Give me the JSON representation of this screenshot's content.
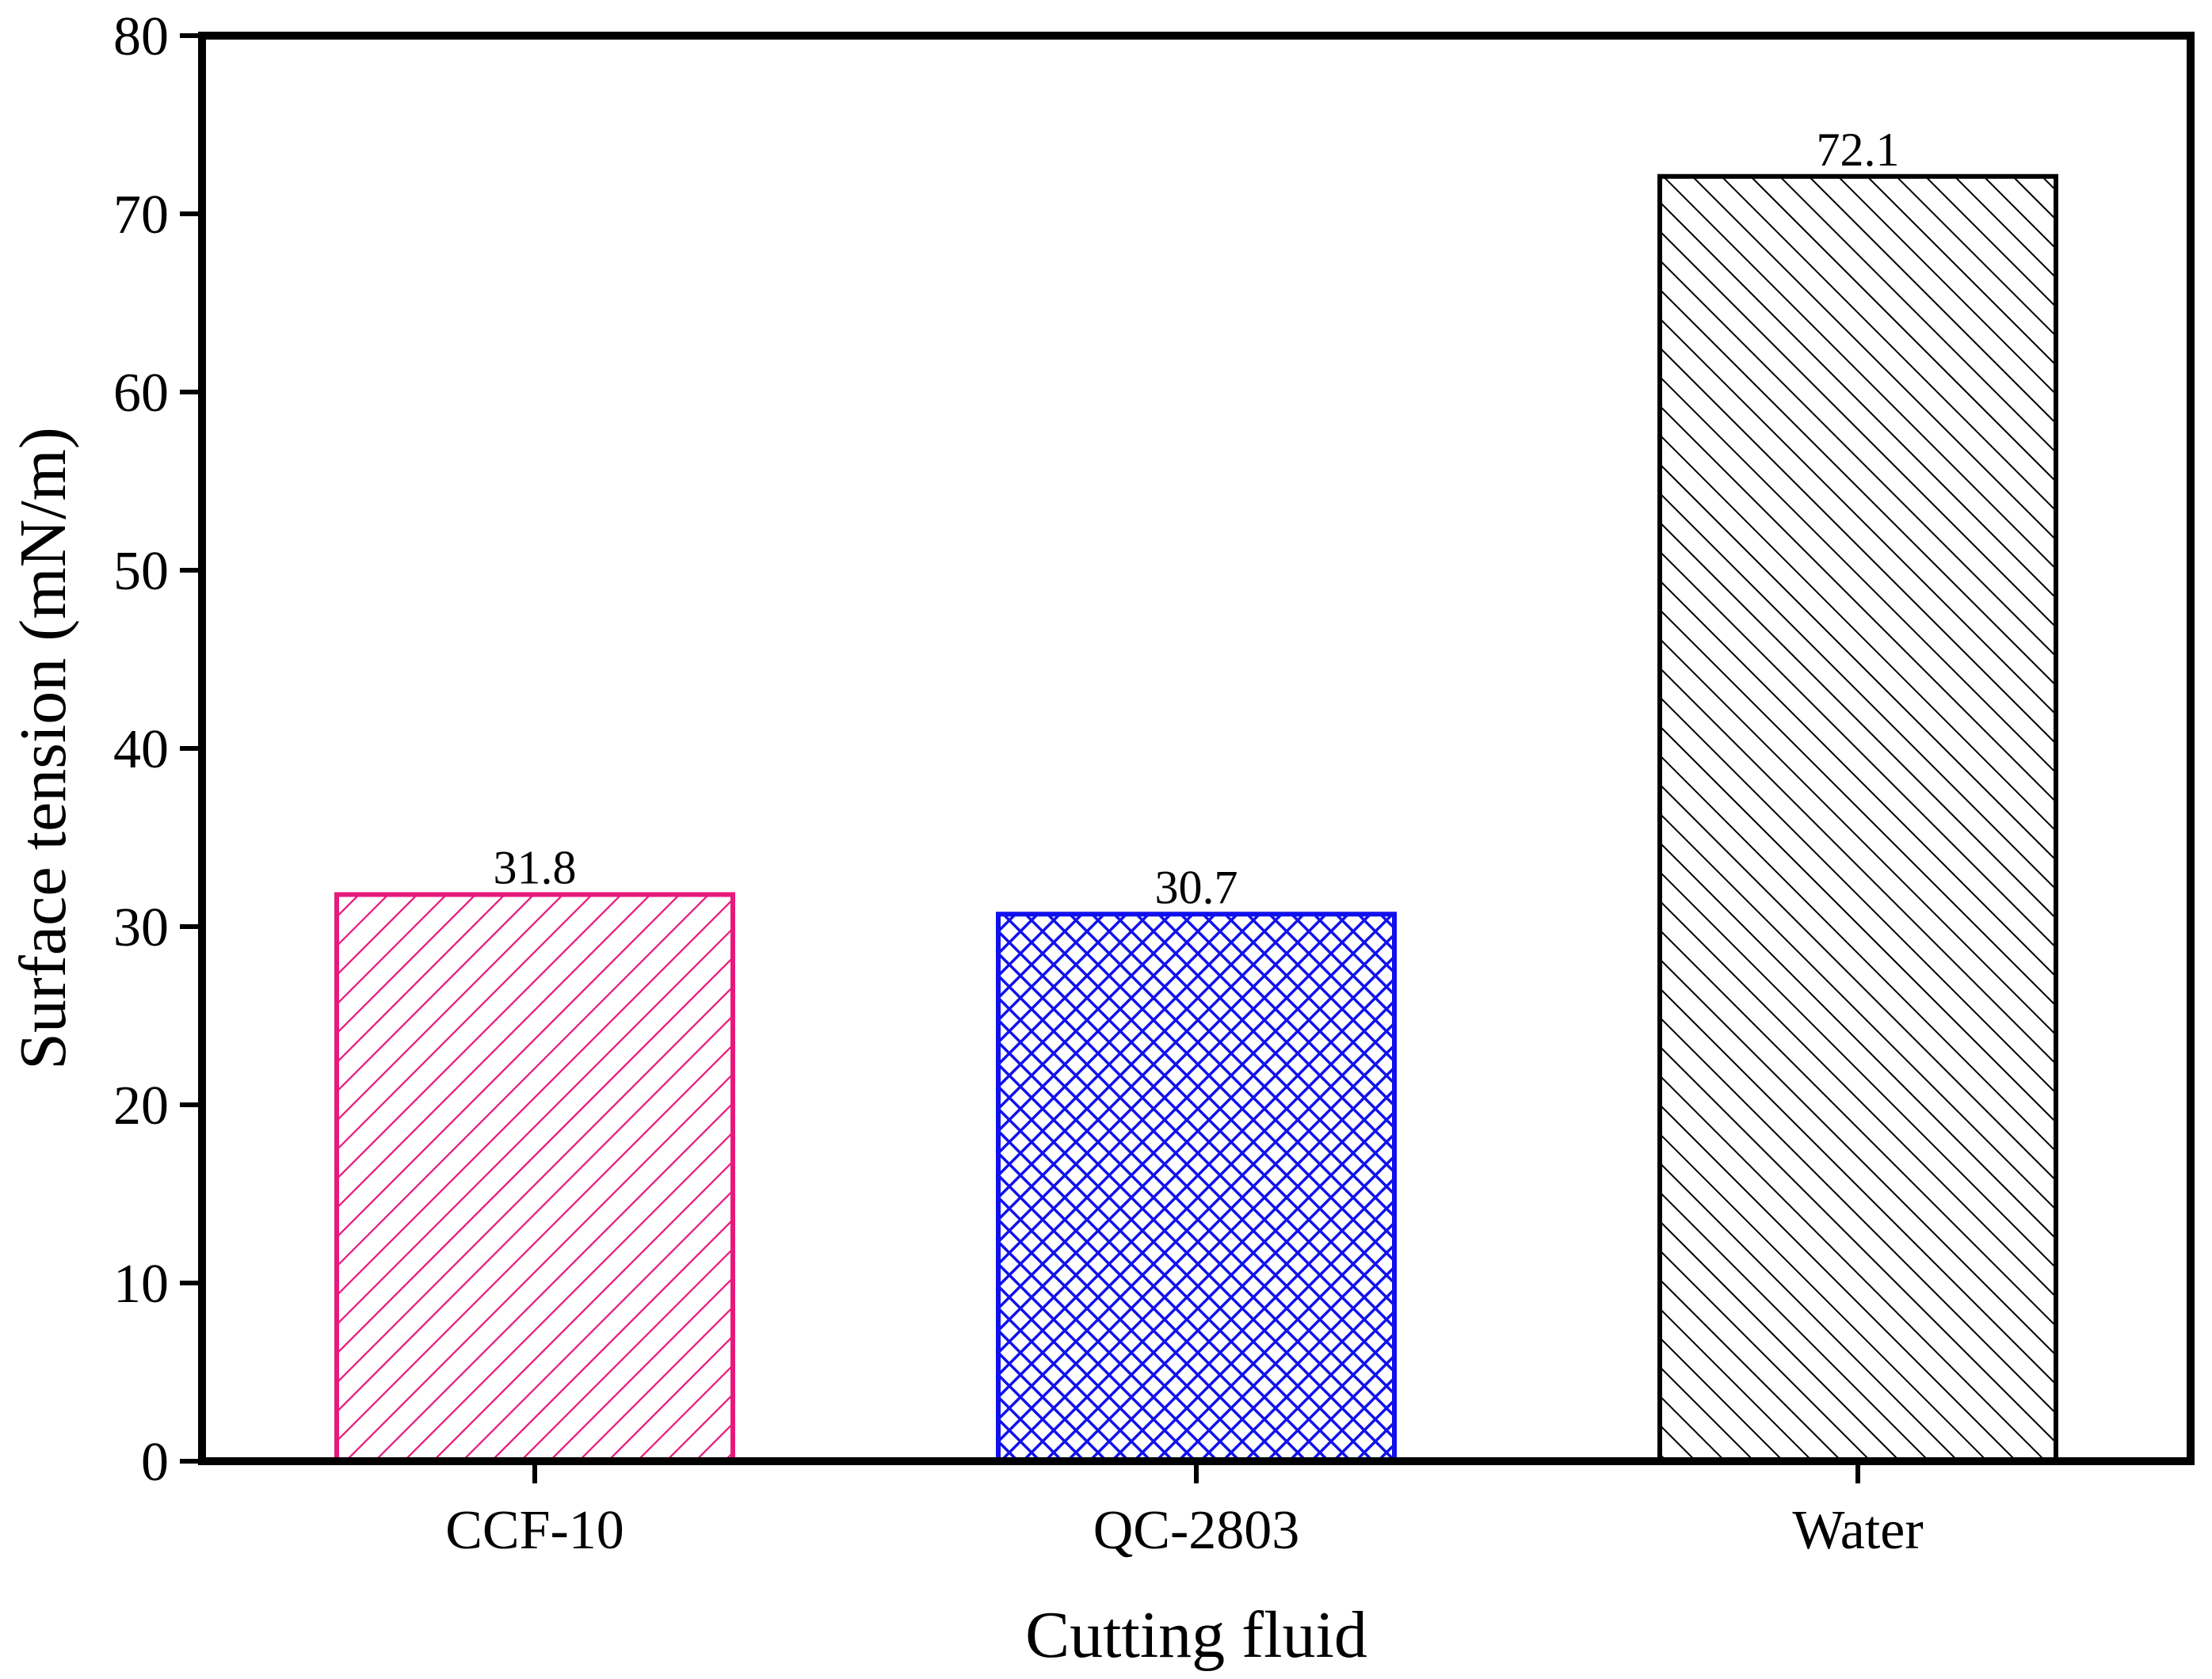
{
  "chart_data": {
    "type": "bar",
    "title": "",
    "xlabel": "Cutting fluid",
    "ylabel": "Surface tension (mN/m)",
    "ylim": [
      0,
      80
    ],
    "yticks": [
      0,
      10,
      20,
      30,
      40,
      50,
      60,
      70,
      80
    ],
    "ytick_labels": [
      "0",
      "10",
      "20",
      "30",
      "40",
      "50",
      "60",
      "70",
      "80"
    ],
    "categories": [
      "CCF-10",
      "QC-2803",
      "Water"
    ],
    "values": [
      31.8,
      30.7,
      72.1
    ],
    "value_labels": [
      "31.8",
      "30.7",
      "72.1"
    ],
    "bar_colors": [
      "#e8197d",
      "#1010ee",
      "#000000"
    ],
    "bar_patterns": [
      "diagonal-forward",
      "crosshatch",
      "diagonal-back"
    ],
    "grid": false,
    "legend": "none"
  }
}
